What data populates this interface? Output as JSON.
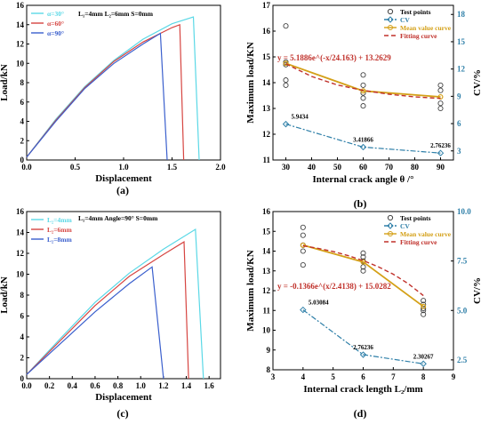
{
  "figure": {
    "panel_a_label": "(a)",
    "panel_b_label": "(b)",
    "panel_c_label": "(c)",
    "panel_d_label": "(d)"
  },
  "chart_data": [
    {
      "panel": "(a)",
      "type": "line",
      "xlabel": "Displacement",
      "ylabel": "Load/kN",
      "xlim": [
        0,
        2.0
      ],
      "ylim": [
        0,
        16
      ],
      "xticks": [
        "0.0",
        "0.5",
        "1.0",
        "1.5",
        "2.0"
      ],
      "yticks": [
        "0",
        "2",
        "4",
        "6",
        "8",
        "10",
        "12",
        "14",
        "16"
      ],
      "annotation": "L₁=4mm  L₂=6mm  S=0mm",
      "legend_position": "top-left",
      "series": [
        {
          "name": "α=30°",
          "color": "#5ad8e6",
          "x": [
            0.0,
            0.3,
            0.6,
            0.9,
            1.2,
            1.5,
            1.72,
            1.78
          ],
          "y": [
            0.3,
            4.2,
            7.6,
            10.3,
            12.5,
            14.1,
            14.8,
            0.0
          ]
        },
        {
          "name": "α=60°",
          "color": "#d64541",
          "x": [
            0.0,
            0.3,
            0.6,
            0.9,
            1.2,
            1.5,
            1.58,
            1.62
          ],
          "y": [
            0.3,
            4.1,
            7.5,
            10.2,
            12.2,
            13.7,
            14.0,
            0.0
          ]
        },
        {
          "name": "α=90°",
          "color": "#3a5fcd",
          "x": [
            0.0,
            0.3,
            0.6,
            0.9,
            1.2,
            1.38,
            1.45
          ],
          "y": [
            0.3,
            4.0,
            7.4,
            10.0,
            12.0,
            13.1,
            0.0
          ]
        }
      ]
    },
    {
      "panel": "(b)",
      "type": "scatter",
      "xlabel": "Internal crack angle θ /°",
      "ylabel": "Maximum load/KN",
      "y2label": "CV/%",
      "xlim": [
        25,
        95
      ],
      "ylim": [
        11,
        17
      ],
      "y2lim": [
        2,
        19
      ],
      "xticks": [
        "30",
        "40",
        "50",
        "60",
        "70",
        "80",
        "90"
      ],
      "yticks": [
        "11",
        "12",
        "13",
        "14",
        "15",
        "16",
        "17"
      ],
      "y2ticks": [
        "3",
        "6",
        "9",
        "12",
        "15",
        "18"
      ],
      "equation": "y = 5.1886e^(-x/24.163) + 13.2629",
      "legend_position": "top-right",
      "test_points": {
        "name": "Test points",
        "x": [
          30,
          30,
          30,
          30,
          30,
          60,
          60,
          60,
          60,
          60,
          90,
          90,
          90,
          90
        ],
        "y": [
          16.2,
          14.8,
          14.1,
          13.9,
          14.7,
          14.3,
          13.9,
          13.6,
          13.4,
          13.1,
          13.9,
          13.7,
          13.2,
          13.0
        ]
      },
      "mean_curve": {
        "name": "Mean value curve",
        "color": "#d4a017",
        "x": [
          30,
          60,
          90
        ],
        "y": [
          14.75,
          13.68,
          13.45
        ]
      },
      "fitting_curve": {
        "name": "Fitting curve",
        "color": "#c0302a",
        "x": [
          30,
          40,
          50,
          60,
          70,
          80,
          90
        ],
        "y": [
          14.73,
          14.24,
          13.91,
          13.7,
          13.55,
          13.45,
          13.39
        ]
      },
      "cv_series": {
        "name": "CV",
        "color": "#2e7fa8",
        "x": [
          30,
          60,
          90
        ],
        "y": [
          5.9434,
          3.41866,
          2.76236
        ],
        "labels": [
          "5.9434",
          "3.41866",
          "2.76236"
        ]
      }
    },
    {
      "panel": "(c)",
      "type": "line",
      "xlabel": "Displacement",
      "ylabel": "Load/kN",
      "xlim": [
        0,
        1.7
      ],
      "ylim": [
        0,
        16
      ],
      "xticks": [
        "0.0",
        "0.2",
        "0.4",
        "0.6",
        "0.8",
        "1.0",
        "1.2",
        "1.4",
        "1.6"
      ],
      "yticks": [
        "0",
        "2",
        "4",
        "6",
        "8",
        "10",
        "12",
        "14",
        "16"
      ],
      "annotation": "L₁=4mm  Angle=90°  S=0mm",
      "legend_position": "top-left",
      "series": [
        {
          "name": "L₂=4mm",
          "color": "#5ad8e6",
          "x": [
            0.0,
            0.3,
            0.6,
            0.9,
            1.2,
            1.48,
            1.55
          ],
          "y": [
            0.4,
            3.9,
            7.3,
            10.1,
            12.4,
            14.3,
            0.0
          ]
        },
        {
          "name": "L₂=6mm",
          "color": "#d64541",
          "x": [
            0.0,
            0.3,
            0.6,
            0.9,
            1.2,
            1.38,
            1.42
          ],
          "y": [
            0.4,
            3.7,
            7.0,
            9.8,
            11.9,
            13.1,
            0.0
          ]
        },
        {
          "name": "L₂=8mm",
          "color": "#3a5fcd",
          "x": [
            0.0,
            0.3,
            0.6,
            0.9,
            1.1,
            1.2
          ],
          "y": [
            0.4,
            3.4,
            6.4,
            9.1,
            10.7,
            0.0
          ]
        }
      ]
    },
    {
      "panel": "(d)",
      "type": "scatter",
      "xlabel": "Internal crack length L₂/mm",
      "ylabel": "Maximum load/KN",
      "y2label": "CV/%",
      "xlim": [
        3,
        9
      ],
      "ylim": [
        8,
        16
      ],
      "y2lim": [
        2.0,
        10.0
      ],
      "xticks": [
        "3",
        "4",
        "5",
        "6",
        "7",
        "8",
        "9"
      ],
      "yticks": [
        "8",
        "9",
        "10",
        "11",
        "12",
        "13",
        "14",
        "15",
        "16"
      ],
      "y2ticks": [
        "2.5",
        "5.0",
        "7.5",
        "10.0"
      ],
      "equation": "y = -0.1366e^(x/2.4138) + 15.0282",
      "legend_position": "top-right",
      "test_points": {
        "name": "Test points",
        "x": [
          4,
          4,
          4,
          4,
          4,
          6,
          6,
          6,
          6,
          6,
          8,
          8,
          8,
          8,
          8
        ],
        "y": [
          15.2,
          14.8,
          14.3,
          14.0,
          13.3,
          13.9,
          13.7,
          13.5,
          13.2,
          13.0,
          11.5,
          11.3,
          11.1,
          11.0,
          10.8
        ]
      },
      "mean_curve": {
        "name": "Mean value curve",
        "color": "#d4a017",
        "x": [
          4,
          6,
          8
        ],
        "y": [
          14.3,
          13.45,
          11.2
        ]
      },
      "fitting_curve": {
        "name": "Fitting curve",
        "color": "#c0302a",
        "x": [
          4,
          4.5,
          5,
          5.5,
          6,
          6.5,
          7,
          7.5,
          8
        ],
        "y": [
          14.27,
          14.14,
          13.98,
          13.77,
          13.52,
          13.21,
          12.83,
          12.35,
          11.75
        ]
      },
      "cv_series": {
        "name": "CV",
        "color": "#2e7fa8",
        "x": [
          4,
          6,
          8
        ],
        "y": [
          5.03084,
          2.76236,
          2.30267
        ],
        "labels": [
          "5.03084",
          "2.76236",
          "2.30267"
        ]
      }
    }
  ]
}
